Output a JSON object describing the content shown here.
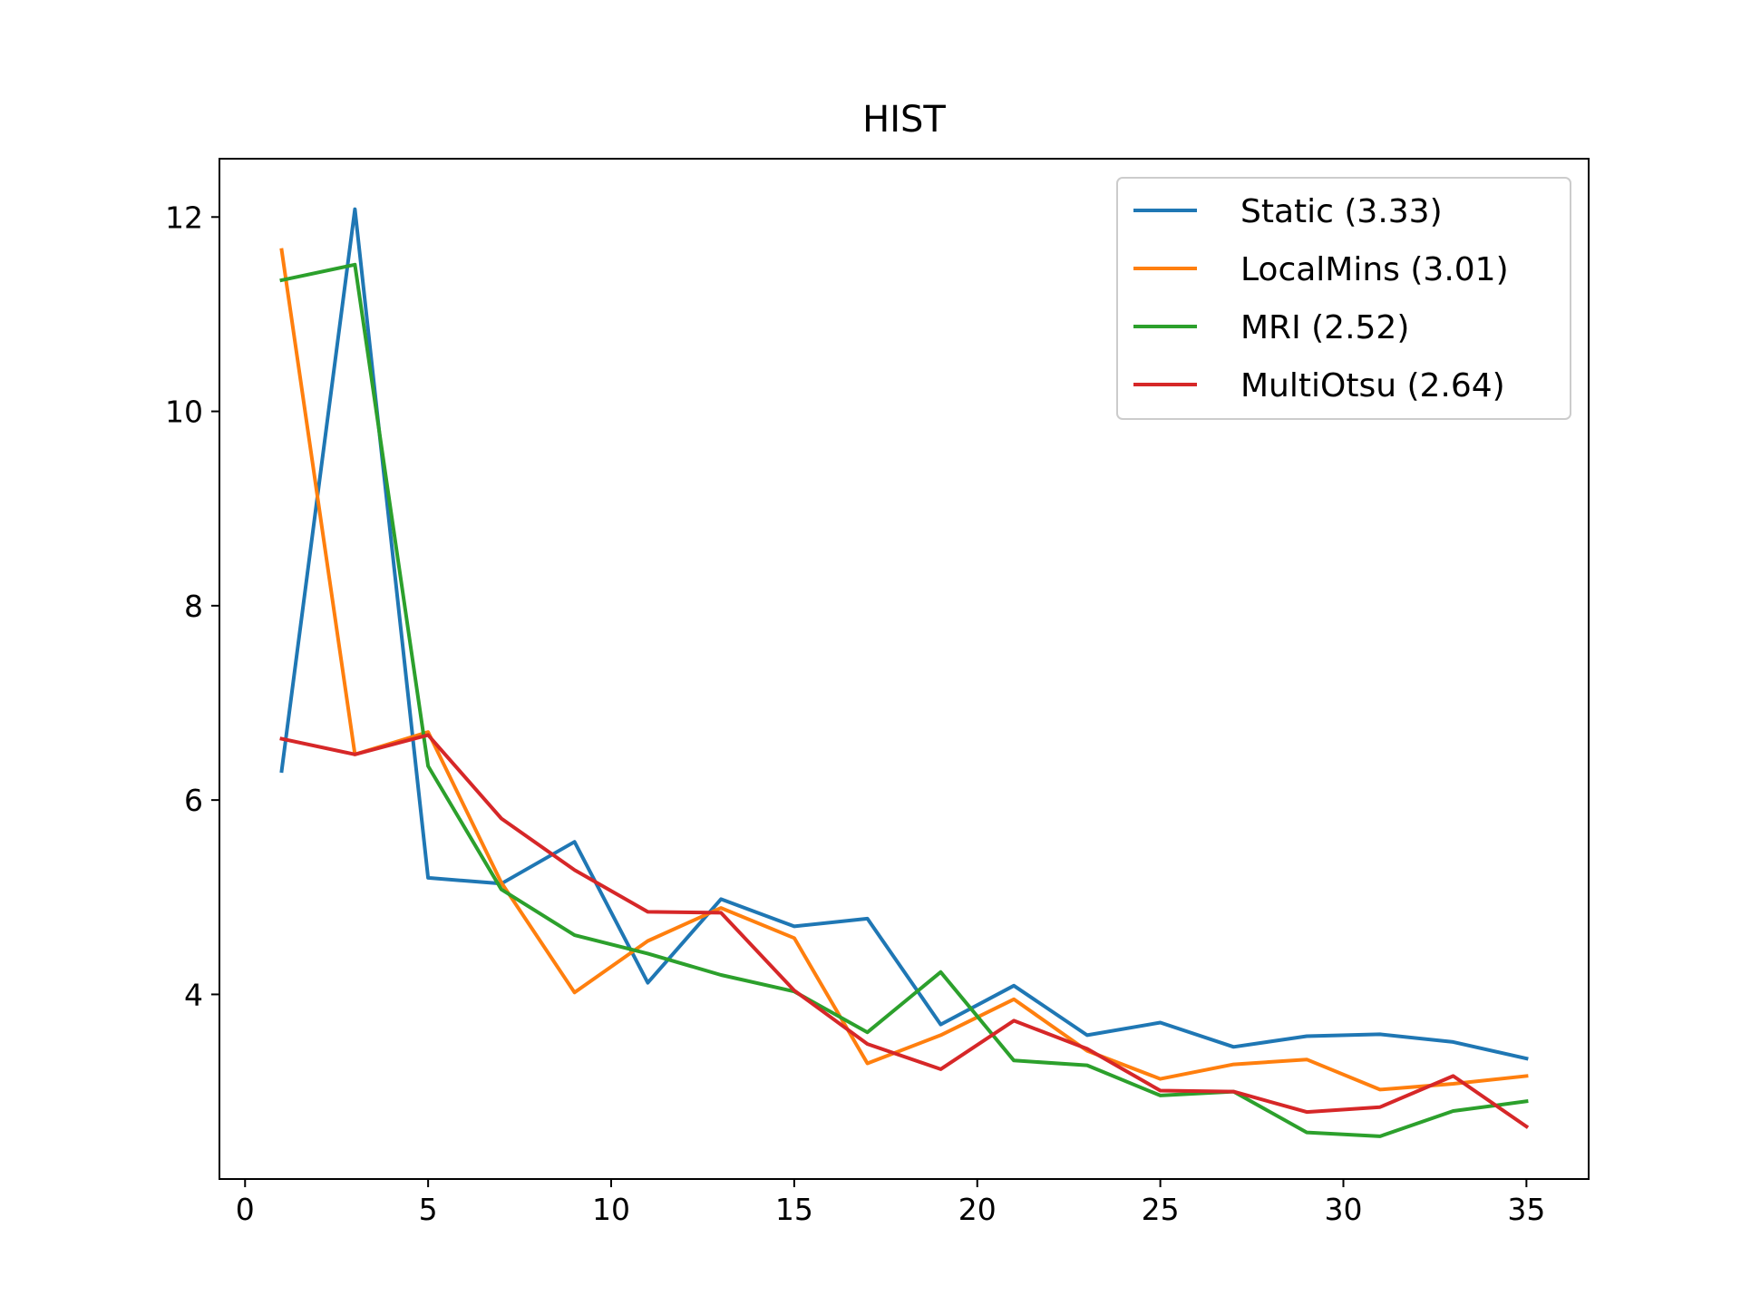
{
  "chart_data": {
    "type": "line",
    "title": "HIST",
    "xlabel": "",
    "ylabel": "",
    "xlim": [
      -0.7,
      36.7
    ],
    "ylim": [
      2.1,
      12.6
    ],
    "xticks": [
      0,
      5,
      10,
      15,
      20,
      25,
      30,
      35
    ],
    "yticks": [
      4,
      6,
      8,
      10,
      12
    ],
    "grid": false,
    "legend_position": "top-right",
    "x": [
      1,
      3,
      5,
      7,
      9,
      11,
      13,
      15,
      17,
      19,
      21,
      23,
      25,
      27,
      29,
      31,
      33,
      35
    ],
    "series": [
      {
        "name": "Static (3.33)",
        "color": "#1f77b4",
        "values": [
          6.3,
          12.08,
          5.2,
          5.14,
          5.57,
          4.12,
          4.98,
          4.7,
          4.78,
          3.69,
          4.09,
          3.58,
          3.71,
          3.46,
          3.57,
          3.59,
          3.51,
          3.34
        ]
      },
      {
        "name": "LocalMins (3.01)",
        "color": "#ff7f0e",
        "values": [
          11.66,
          6.47,
          6.7,
          5.15,
          4.02,
          4.55,
          4.89,
          4.58,
          3.29,
          3.58,
          3.95,
          3.42,
          3.13,
          3.28,
          3.33,
          3.02,
          3.08,
          3.16
        ]
      },
      {
        "name": "MRI (2.52)",
        "color": "#2ca02c",
        "values": [
          11.35,
          11.51,
          6.35,
          5.08,
          4.61,
          4.42,
          4.2,
          4.03,
          3.61,
          4.23,
          3.32,
          3.27,
          2.96,
          3.0,
          2.58,
          2.54,
          2.8,
          2.9
        ]
      },
      {
        "name": "MultiOtsu (2.64)",
        "color": "#d62728",
        "values": [
          6.63,
          6.47,
          6.67,
          5.81,
          5.28,
          4.85,
          4.84,
          4.04,
          3.49,
          3.23,
          3.73,
          3.44,
          3.01,
          3.0,
          2.79,
          2.84,
          3.16,
          2.64
        ]
      }
    ]
  }
}
